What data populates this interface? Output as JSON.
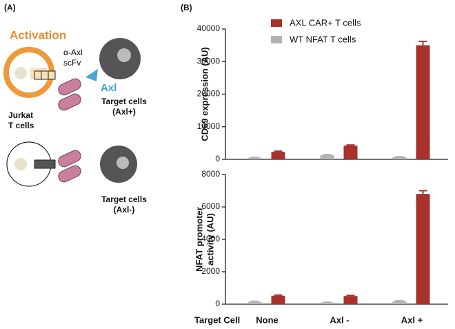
{
  "panel_a": {
    "label": "(A)",
    "activation": "Activation",
    "scfv": [
      "α-Axl",
      "scFv"
    ],
    "axl": "Axl",
    "jurkat": [
      "Jurkat",
      "T cells"
    ],
    "target_pos": [
      "Target cells",
      "(Axl+)"
    ],
    "target_neg": [
      "Target cells",
      "(Axl-)"
    ]
  },
  "panel_b_label": "(B)",
  "chart_data": [
    {
      "type": "bar",
      "y_label": "CD69 expression (AU)",
      "ylim": [
        0,
        40000
      ],
      "yticks": [
        0,
        10000,
        20000,
        30000,
        40000
      ],
      "legend": "top-left",
      "series": [
        {
          "name": "WT NFAT T cells",
          "color": "#b3b3b3",
          "values": [
            500,
            1300,
            700
          ],
          "errors": [
            100,
            150,
            100
          ]
        },
        {
          "name": "AXL CAR+ T cells",
          "color": "#a8312b",
          "values": [
            2300,
            4200,
            35000
          ],
          "errors": [
            200,
            200,
            1200
          ]
        }
      ]
    },
    {
      "type": "bar",
      "y_label": [
        "NFAT promoter",
        "activity (AU)"
      ],
      "x_label": "Target Cell",
      "categories": [
        "None",
        "Axl -",
        "Axl +"
      ],
      "ylim": [
        0,
        8000
      ],
      "yticks": [
        0,
        2000,
        4000,
        6000,
        8000
      ],
      "series": [
        {
          "color": "#b3b3b3",
          "values": [
            150,
            100,
            180
          ],
          "errors": [
            30,
            20,
            30
          ]
        },
        {
          "color": "#a8312b",
          "values": [
            520,
            500,
            6800
          ],
          "errors": [
            40,
            40,
            200
          ]
        }
      ]
    }
  ]
}
